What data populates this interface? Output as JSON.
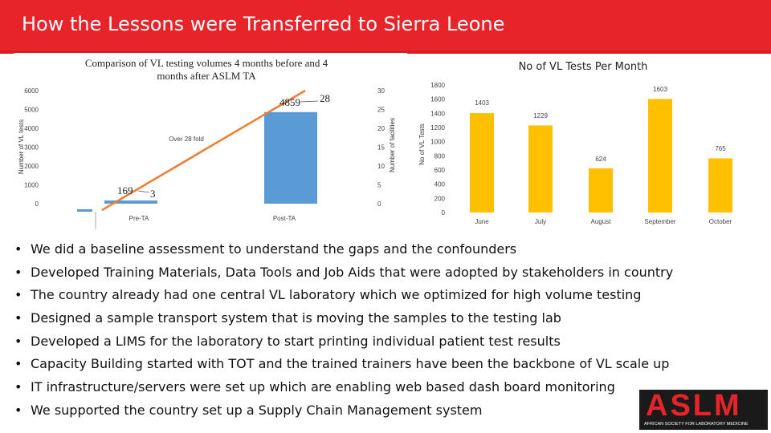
{
  "page": {
    "title": "How the Lessons were Transferred to Sierra Leone",
    "bullets": [
      "We did a baseline assessment to understand the gaps and the confounders",
      "Developed Training Materials, Data Tools and Job Aids that were adopted by  stakeholders in country",
      "The country already had one central VL laboratory which we optimized for high volume testing",
      "Designed a sample transport system that is moving the samples to the testing lab",
      "Developed a LIMS for the laboratory to start printing individual patient test results",
      "Capacity Building started with TOT and the trained trainers have been the backbone of VL scale up",
      "IT infrastructure/servers were set up which are enabling web based dash board monitoring",
      "We supported the country set up a Supply Chain Management system"
    ],
    "bullet_symbol": "•",
    "logo": {
      "text": "ASLM",
      "subtext": "AFRICAN SOCIETY FOR LABORATORY MEDICINE",
      "color": "#e8242b"
    },
    "title_bar_color": "#e8242b"
  },
  "chart_data": [
    {
      "type": "bar",
      "title": "Comparison of VL testing volumes 4 months before  and 4 months after ASLM TA",
      "categories": [
        "Pre-TA",
        "Post-TA"
      ],
      "series": [
        {
          "values": [
            169,
            4859
          ],
          "color": "#5b9bd5"
        },
        {
          "values": [
            3,
            28
          ],
          "color": "#ed7d31",
          "kind": "line"
        }
      ],
      "data_labels_left": [
        "169",
        "4859"
      ],
      "data_labels_right": [
        "3",
        "28"
      ],
      "ylabel": "Number of VL tests",
      "ylabel_right": "Number of facilities",
      "ylim": [
        0,
        6000
      ],
      "yticks": [
        0,
        1000,
        2000,
        3000,
        4000,
        5000,
        6000
      ],
      "ylim_right": [
        0,
        30
      ],
      "yticks_right": [
        0,
        5,
        10,
        15,
        20,
        25,
        30
      ],
      "annotation": "Over 28 fold",
      "grid": false
    },
    {
      "type": "bar",
      "title": "No of VL Tests Per Month",
      "categories": [
        "June",
        "July",
        "August",
        "September",
        "October"
      ],
      "values": [
        1403,
        1229,
        624,
        1603,
        765
      ],
      "data_labels": [
        "1403",
        "1229",
        "624",
        "1603",
        "765"
      ],
      "color": "#ffc000",
      "ylabel": "No of VL Tests",
      "ylim": [
        0,
        1800
      ],
      "yticks": [
        0,
        200,
        400,
        600,
        800,
        1000,
        1200,
        1400,
        1600,
        1800
      ],
      "grid": false
    }
  ]
}
